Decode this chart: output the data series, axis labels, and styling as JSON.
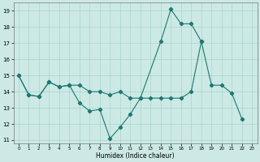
{
  "xlabel": "Humidex (Indice chaleur)",
  "bg_color": "#cce9e5",
  "grid_color": "#aad4cf",
  "line_color": "#1d7870",
  "xlim": [
    -0.5,
    23.5
  ],
  "ylim": [
    10.8,
    19.5
  ],
  "xticks": [
    0,
    1,
    2,
    3,
    4,
    5,
    6,
    7,
    8,
    9,
    10,
    11,
    12,
    13,
    14,
    15,
    16,
    17,
    18,
    19,
    20,
    21,
    22,
    23
  ],
  "yticks": [
    11,
    12,
    13,
    14,
    15,
    16,
    17,
    18,
    19
  ],
  "line1_x": [
    0,
    1,
    2,
    3,
    4,
    5,
    6,
    7,
    8,
    9,
    10,
    11,
    12,
    14,
    15,
    16,
    17,
    18
  ],
  "line1_y": [
    15,
    13.8,
    13.7,
    14.6,
    14.3,
    14.4,
    13.3,
    12.8,
    12.9,
    11.1,
    11.8,
    12.6,
    13.6,
    17.1,
    19.1,
    18.2,
    18.2,
    17.1
  ],
  "line2_x": [
    0,
    1,
    2,
    3,
    4,
    5,
    6,
    7,
    8,
    9,
    10,
    11,
    12,
    13,
    14,
    15,
    16,
    17,
    18,
    19,
    20,
    21,
    22
  ],
  "line2_y": [
    15,
    13.8,
    13.7,
    14.6,
    14.3,
    14.4,
    14.4,
    14.0,
    14.0,
    13.8,
    14.0,
    13.6,
    13.6,
    13.6,
    13.6,
    13.6,
    13.6,
    14.0,
    17.1,
    14.4,
    14.4,
    13.9,
    12.3
  ],
  "line3_x": [
    3,
    5,
    11,
    12,
    15,
    16,
    17,
    18,
    19,
    20,
    21,
    22
  ],
  "line3_y": [
    14.6,
    14.4,
    13.6,
    13.6,
    19.1,
    18.2,
    18.2,
    17.1,
    14.4,
    14.4,
    13.9,
    12.3
  ]
}
